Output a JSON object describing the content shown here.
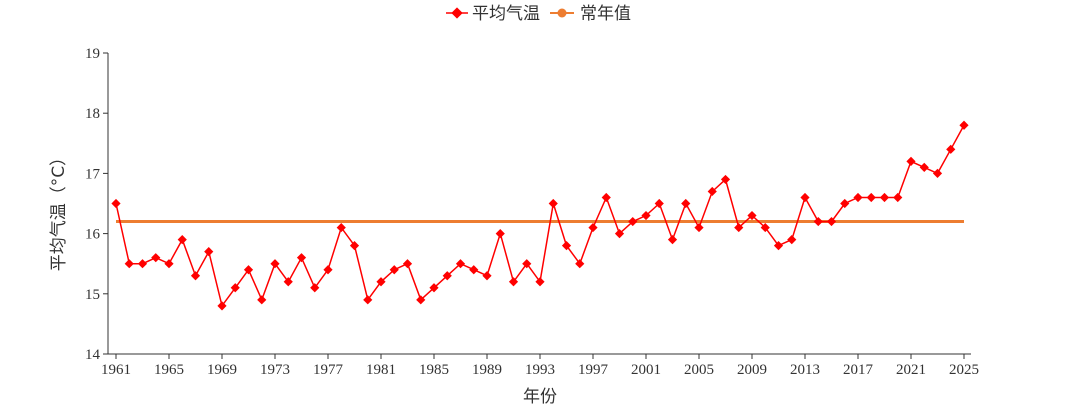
{
  "colors": {
    "series": "#ff0000",
    "normal": "#ed7d31",
    "axis": "#333333"
  },
  "chart_data": {
    "type": "line",
    "title": "",
    "xlabel": "年份",
    "ylabel": "平均气温（°C）",
    "xlim": [
      1961,
      2025
    ],
    "ylim": [
      14,
      19
    ],
    "x_ticks": [
      1961,
      1965,
      1969,
      1973,
      1977,
      1981,
      1985,
      1989,
      1993,
      1997,
      2001,
      2005,
      2009,
      2013,
      2017,
      2021,
      2025
    ],
    "y_ticks": [
      14,
      15,
      16,
      17,
      18,
      19
    ],
    "grid": false,
    "legend_position": "top-center",
    "x": [
      1961,
      1962,
      1963,
      1964,
      1965,
      1966,
      1967,
      1968,
      1969,
      1970,
      1971,
      1972,
      1973,
      1974,
      1975,
      1976,
      1977,
      1978,
      1979,
      1980,
      1981,
      1982,
      1983,
      1984,
      1985,
      1986,
      1987,
      1988,
      1989,
      1990,
      1991,
      1992,
      1993,
      1994,
      1995,
      1996,
      1997,
      1998,
      1999,
      2000,
      2001,
      2002,
      2003,
      2004,
      2005,
      2006,
      2007,
      2008,
      2009,
      2010,
      2011,
      2012,
      2013,
      2014,
      2015,
      2016,
      2017,
      2018,
      2019,
      2020,
      2021,
      2022,
      2023,
      2024,
      2025
    ],
    "series": [
      {
        "name": "平均气温",
        "marker": "diamond",
        "values": [
          16.5,
          15.5,
          15.5,
          15.6,
          15.5,
          15.9,
          15.3,
          15.7,
          14.8,
          15.1,
          15.4,
          14.9,
          15.5,
          15.2,
          15.6,
          15.1,
          15.4,
          16.1,
          15.8,
          14.9,
          15.2,
          15.4,
          15.5,
          14.9,
          15.1,
          15.3,
          15.5,
          15.4,
          15.3,
          16.0,
          15.2,
          15.5,
          15.2,
          16.5,
          15.8,
          15.5,
          16.1,
          16.6,
          16.0,
          16.2,
          16.3,
          16.5,
          15.9,
          16.5,
          16.1,
          16.7,
          16.9,
          16.1,
          16.3,
          16.1,
          15.8,
          15.9,
          16.6,
          16.2,
          16.2,
          16.5,
          16.6,
          16.6,
          16.6,
          16.6,
          17.2,
          17.1,
          17.0,
          17.4,
          17.8
        ]
      },
      {
        "name": "常年值",
        "values_constant": 16.2
      }
    ]
  }
}
